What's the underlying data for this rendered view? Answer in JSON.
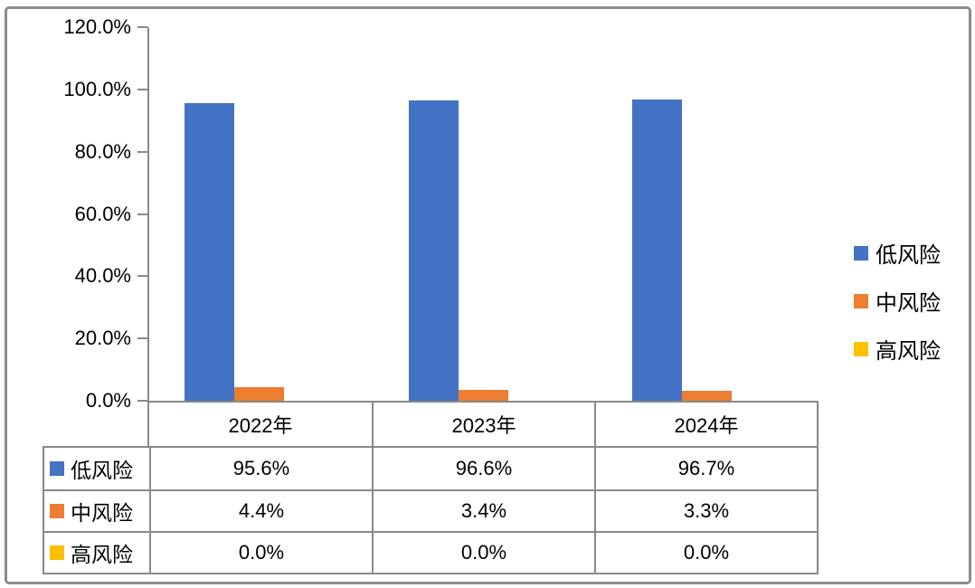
{
  "chart_data": {
    "type": "bar",
    "title": "",
    "categories": [
      "2022年",
      "2023年",
      "2024年"
    ],
    "series": [
      {
        "id": "low-risk",
        "name": "低风险",
        "color": "#4472C4",
        "values": [
          95.6,
          96.6,
          96.7
        ]
      },
      {
        "id": "mid-risk",
        "name": "中风险",
        "color": "#ED7D31",
        "values": [
          4.4,
          3.4,
          3.3
        ]
      },
      {
        "id": "high-risk",
        "name": "高风险",
        "color": "#FFC000",
        "values": [
          0.0,
          0.0,
          0.0
        ]
      }
    ],
    "value_format": "percent",
    "ylim": [
      0,
      120
    ],
    "ytick_labels": [
      "120.0%",
      "100.0%",
      "80.0%",
      "60.0%",
      "40.0%",
      "20.0%",
      "0.0%"
    ],
    "grid": false,
    "legend_position": "right",
    "data_table": {
      "header": [
        "2022年",
        "2023年",
        "2024年"
      ],
      "rows": [
        {
          "label": "低风险",
          "values": [
            "95.6%",
            "96.6%",
            "96.7%"
          ]
        },
        {
          "label": "中风险",
          "values": [
            "4.4%",
            "3.4%",
            "3.3%"
          ]
        },
        {
          "label": "高风险",
          "values": [
            "0.0%",
            "0.0%",
            "0.0%"
          ]
        }
      ]
    },
    "colors": {
      "axis": "#898989",
      "table_border": "#898989",
      "frame_border": "#8C8C8C",
      "background": "#FFFFFF"
    }
  }
}
